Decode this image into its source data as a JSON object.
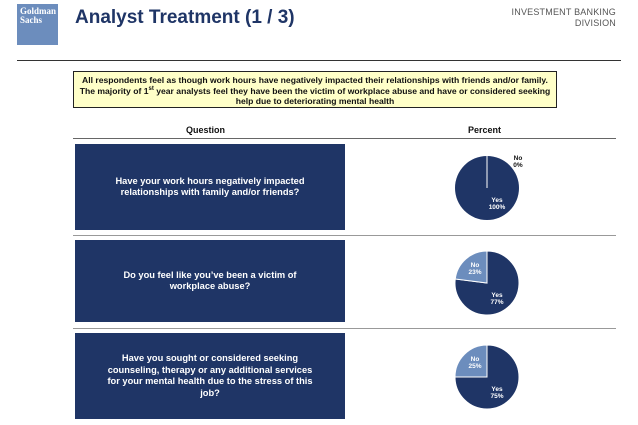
{
  "header": {
    "logo_text": "Goldman Sachs",
    "title": "Analyst Treatment (1 / 3)",
    "division_line1": "INVESTMENT BANKING",
    "division_line2": "DIVISION"
  },
  "summary": {
    "text_part1": "All respondents feel as though work hours have negatively impacted their relationships with friends and/or family.  The majority of 1",
    "text_sup": "st",
    "text_part2": " year analysts feel they have been the victim of workplace abuse and have or considered seeking help due to deteriorating mental health"
  },
  "table": {
    "question_header": "Question",
    "percent_header": "Percent"
  },
  "colors": {
    "dark_navy": "#1f3566",
    "light_blue": "#6c8dbd",
    "summary_bg": "#ffffc8"
  },
  "chart_data": [
    {
      "type": "pie",
      "question": "Have your work hours negatively impacted relationships with family and/or friends?",
      "slices": [
        {
          "label": "Yes",
          "value": 100,
          "value_label": "100%",
          "color": "#1f3566"
        },
        {
          "label": "No",
          "value": 0,
          "value_label": "0%",
          "color": "#6c8dbd"
        }
      ]
    },
    {
      "type": "pie",
      "question": "Do you feel like you’ve been a victim of workplace abuse?",
      "slices": [
        {
          "label": "Yes",
          "value": 77,
          "value_label": "77%",
          "color": "#1f3566"
        },
        {
          "label": "No",
          "value": 23,
          "value_label": "23%",
          "color": "#6c8dbd"
        }
      ]
    },
    {
      "type": "pie",
      "question": "Have you sought or considered seeking counseling, therapy or any additional services for your mental health due to the stress of this job?",
      "slices": [
        {
          "label": "Yes",
          "value": 75,
          "value_label": "75%",
          "color": "#1f3566"
        },
        {
          "label": "No",
          "value": 25,
          "value_label": "25%",
          "color": "#6c8dbd"
        }
      ]
    }
  ]
}
